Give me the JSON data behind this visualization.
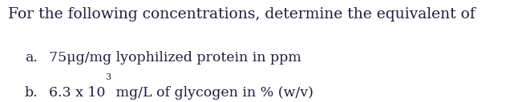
{
  "background_color": "#ffffff",
  "title_text": "For the following concentrations, determine the equivalent of",
  "title_fontsize": 13.5,
  "text_color": "#1f1f3d",
  "item_a_label": "a.",
  "item_a_text": "75μg/mg lyophilized protein in ppm",
  "item_b_label": "b.",
  "item_b_text_normal1": "6.3 x 10",
  "item_b_superscript": "3",
  "item_b_text_normal2": " mg/L of glycogen in % (w/v)",
  "fontsize": 12.5,
  "font_family": "DejaVu Serif",
  "title_font_family": "DejaVu Serif"
}
